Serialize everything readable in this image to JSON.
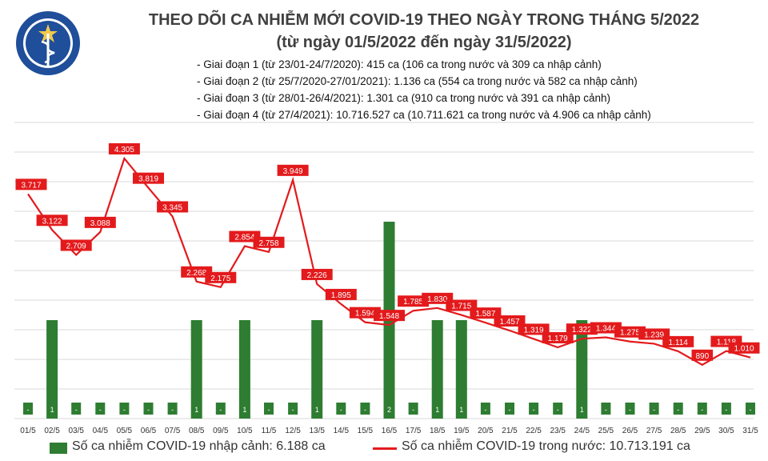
{
  "header": {
    "logo_text_top": "BỘ Y TẾ",
    "logo_text_bottom": "MINISTRY OF HEALTH",
    "title": "THEO DÕI CA NHIỄM MỚI COVID-19 THEO NGÀY TRONG THÁNG 5/2022",
    "subtitle": "(từ ngày 01/5/2022 đến ngày 31/5/2022)",
    "stages": [
      "- Giai đoạn 1 (từ 23/01-24/7/2020): 415 ca (106 ca trong nước và 309 ca nhập cảnh)",
      "- Giai đoạn 2 (từ 25/7/2020-27/01/2021): 1.136 ca (554 ca trong nước và 582 ca nhập cảnh)",
      "- Giai đoạn 3 (từ 28/01-26/4/2021): 1.301 ca (910 ca trong nước và 391 ca nhập cảnh)",
      "- Giai đoạn 4 (từ 27/4/2021): 10.716.527 ca (10.711.621 ca trong nước và 4.906 ca nhập cảnh)"
    ]
  },
  "colors": {
    "bar": "#2e7d32",
    "line": "#e31a1c",
    "label_bg": "#e31a1c",
    "grid": "#d9d9d9"
  },
  "chart_data": {
    "type": "bar+line",
    "categories": [
      "01/5",
      "02/5",
      "03/5",
      "04/5",
      "05/5",
      "06/5",
      "07/5",
      "08/5",
      "09/5",
      "10/5",
      "11/5",
      "12/5",
      "13/5",
      "14/5",
      "15/5",
      "16/5",
      "17/5",
      "18/5",
      "19/5",
      "20/5",
      "21/5",
      "22/5",
      "23/5",
      "24/5",
      "25/5",
      "26/5",
      "27/5",
      "28/5",
      "29/5",
      "30/5",
      "31/5"
    ],
    "bar_series": {
      "name": "Số ca nhiễm COVID-19 nhập cảnh: 6.188 ca",
      "values": [
        0,
        1,
        0,
        0,
        0,
        0,
        0,
        1,
        0,
        1,
        0,
        0,
        1,
        0,
        0,
        2,
        0,
        1,
        1,
        0,
        0,
        0,
        0,
        1,
        0,
        0,
        0,
        0,
        0,
        0,
        0
      ],
      "labels": [
        "-",
        "1",
        "-",
        "-",
        "-",
        "-",
        "-",
        "1",
        "-",
        "1",
        "-",
        "-",
        "1",
        "-",
        "-",
        "2",
        "-",
        "1",
        "1",
        "-",
        "-",
        "-",
        "-",
        "1",
        "-",
        "-",
        "-",
        "-",
        "-",
        "-",
        "-"
      ]
    },
    "line_series": {
      "name": "Số ca nhiễm COVID-19 trong nước: 10.713.191 ca",
      "values": [
        3717,
        3122,
        2709,
        3088,
        4305,
        3819,
        3345,
        2268,
        2175,
        2854,
        2758,
        3949,
        2226,
        1895,
        1594,
        1548,
        1785,
        1830,
        1715,
        1587,
        1457,
        1319,
        1179,
        1322,
        1344,
        1275,
        1239,
        1114,
        890,
        1118,
        1010
      ],
      "labels": [
        "3.717",
        "3.122",
        "2.709",
        "3.088",
        "4.305",
        "3.819",
        "3.345",
        "2.268",
        "2.175",
        "2.854",
        "2.758",
        "3.949",
        "2.226",
        "1.895",
        "1.594",
        "1.548",
        "1.785",
        "1.830",
        "1.715",
        "1.587",
        "1.457",
        "1.319",
        "1.179",
        "1.322",
        "1.344",
        "1.275",
        "1.239",
        "1.114",
        "890",
        "1.118",
        "1.010"
      ]
    },
    "grid": true,
    "legend": "bottom"
  }
}
